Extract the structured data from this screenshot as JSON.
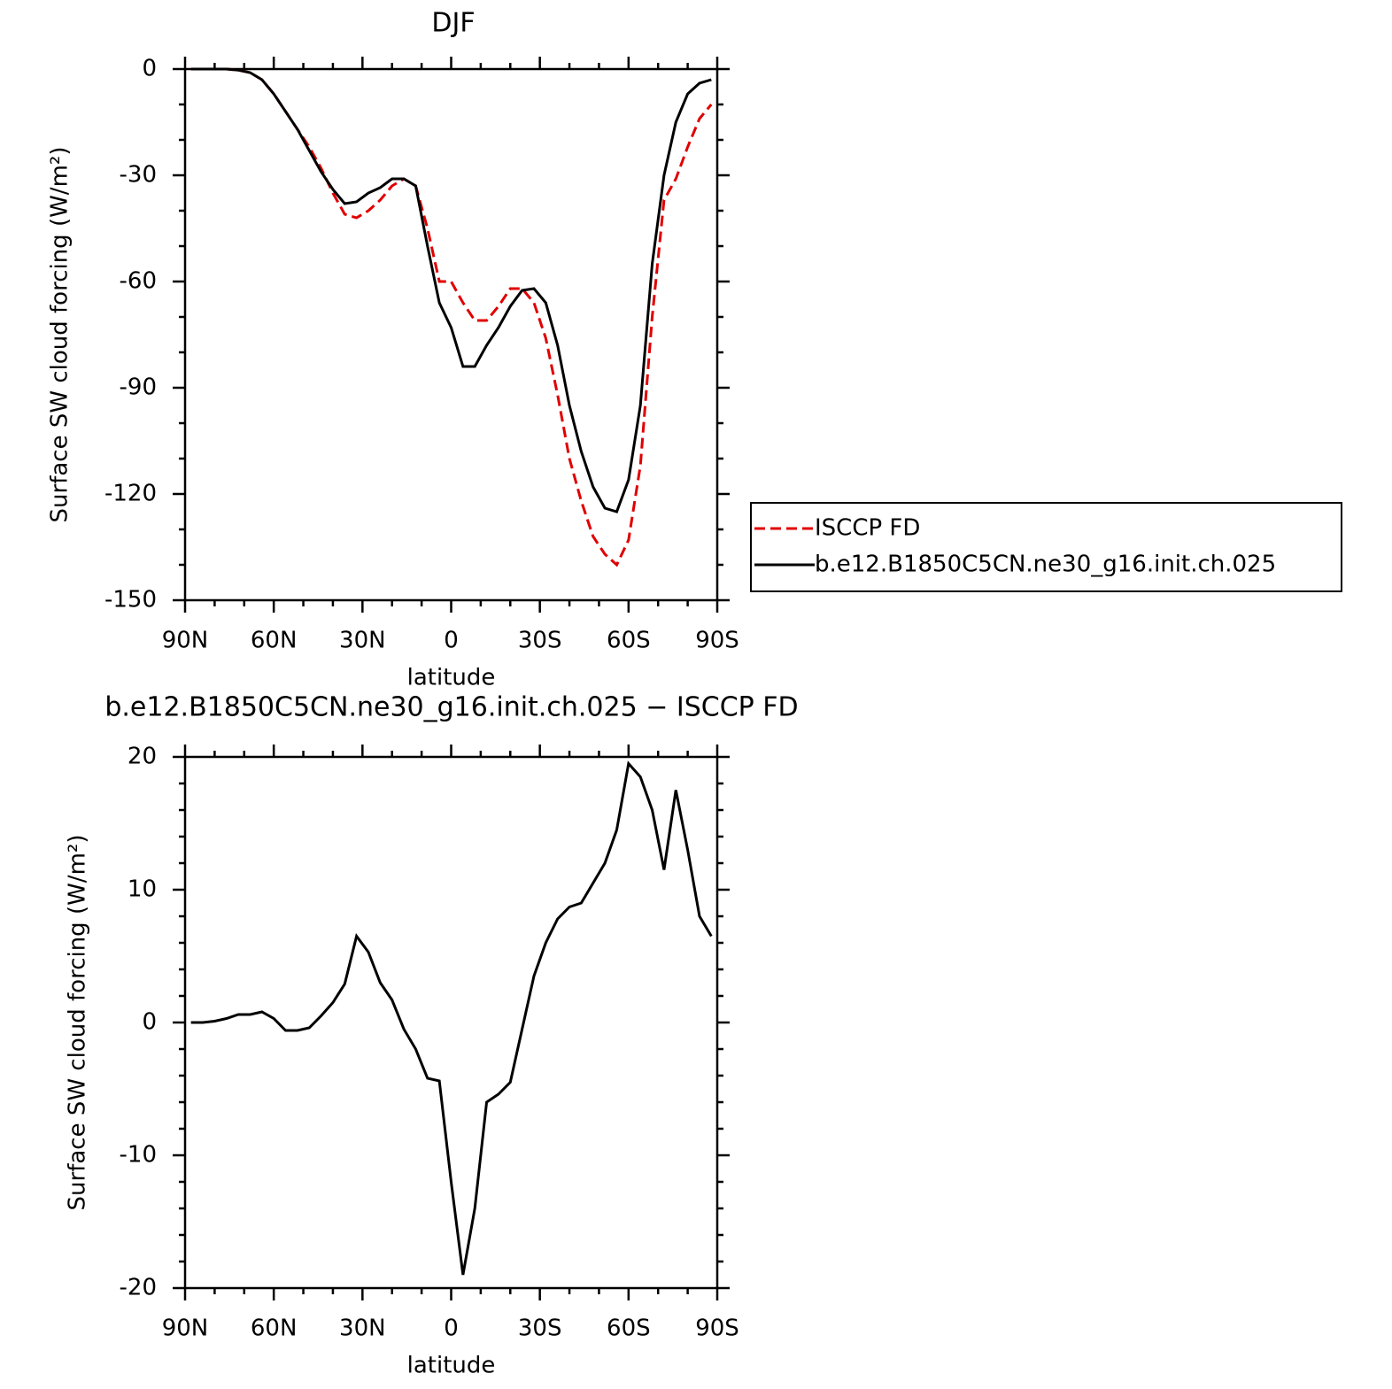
{
  "chart_data": [
    {
      "type": "line",
      "title": "DJF",
      "xlabel": "latitude",
      "ylabel": "Surface SW cloud forcing (W/m²)",
      "x": [
        88,
        84,
        80,
        76,
        72,
        68,
        64,
        60,
        56,
        52,
        48,
        44,
        40,
        36,
        32,
        28,
        24,
        20,
        16,
        12,
        8,
        4,
        0,
        -4,
        -8,
        -12,
        -16,
        -20,
        -24,
        -28,
        -32,
        -36,
        -40,
        -44,
        -48,
        -52,
        -56,
        -60,
        -64,
        -68,
        -72,
        -76,
        -80,
        -84,
        -88
      ],
      "xlim": [
        90,
        -90
      ],
      "xticks": [
        {
          "value": 90,
          "label": "90N"
        },
        {
          "value": 60,
          "label": "60N"
        },
        {
          "value": 30,
          "label": "30N"
        },
        0,
        {
          "value": -30,
          "label": "30S"
        },
        {
          "value": -60,
          "label": "60S"
        },
        {
          "value": -90,
          "label": "90S"
        }
      ],
      "xminorticks": [
        80,
        70,
        50,
        40,
        20,
        10,
        -10,
        -20,
        -40,
        -50,
        -70,
        -80
      ],
      "ylim": [
        -150,
        0
      ],
      "yticks": [
        0,
        -30,
        -60,
        -90,
        -120,
        -150
      ],
      "yminorticks": [
        -10,
        -20,
        -40,
        -50,
        -70,
        -80,
        -100,
        -110,
        -130,
        -140
      ],
      "legend": "right",
      "series": [
        {
          "name": "ISCCP FD",
          "color": "#e00000",
          "linestyle": "dashed",
          "values": [
            0,
            0,
            0,
            0,
            -0.3,
            -1,
            -3,
            -7,
            -12,
            -17,
            -22,
            -28,
            -35,
            -41,
            -42,
            -40,
            -37,
            -33,
            -31,
            -33,
            -45,
            -60,
            -60,
            -66,
            -71,
            -71,
            -67,
            -62,
            -62,
            -66,
            -76,
            -92,
            -110,
            -122,
            -132,
            -137,
            -140,
            -133,
            -112,
            -70,
            -37,
            -31,
            -22,
            -14,
            -10
          ]
        },
        {
          "name": "b.e12.B1850C5CN.ne30_g16.init.ch.025",
          "color": "#000000",
          "linestyle": "solid",
          "values": [
            0,
            0,
            0,
            0,
            -0.3,
            -1,
            -3,
            -7,
            -12,
            -17,
            -23,
            -29,
            -34,
            -38,
            -37.5,
            -35,
            -33.5,
            -31,
            -31,
            -33,
            -50,
            -66,
            -73,
            -84,
            -84,
            -78,
            -73,
            -67,
            -62.5,
            -62,
            -66,
            -78,
            -95,
            -108,
            -118,
            -124,
            -125,
            -116,
            -95,
            -55,
            -30,
            -15,
            -7,
            -4,
            -3
          ]
        }
      ]
    },
    {
      "type": "line",
      "title": "b.e12.B1850C5CN.ne30_g16.init.ch.025 − ISCCP FD",
      "xlabel": "latitude",
      "ylabel": "Surface SW cloud forcing (W/m²)",
      "x": [
        88,
        84,
        80,
        76,
        72,
        68,
        64,
        60,
        56,
        52,
        48,
        44,
        40,
        36,
        32,
        28,
        24,
        20,
        16,
        12,
        8,
        4,
        0,
        -4,
        -8,
        -12,
        -16,
        -20,
        -24,
        -28,
        -32,
        -36,
        -40,
        -44,
        -48,
        -52,
        -56,
        -60,
        -64,
        -68,
        -72,
        -76,
        -80,
        -84,
        -88
      ],
      "xlim": [
        90,
        -90
      ],
      "xticks": [
        {
          "value": 90,
          "label": "90N"
        },
        {
          "value": 60,
          "label": "60N"
        },
        {
          "value": 30,
          "label": "30N"
        },
        0,
        {
          "value": -30,
          "label": "30S"
        },
        {
          "value": -60,
          "label": "60S"
        },
        {
          "value": -90,
          "label": "90S"
        }
      ],
      "xminorticks": [
        80,
        70,
        50,
        40,
        20,
        10,
        -10,
        -20,
        -40,
        -50,
        -70,
        -80
      ],
      "ylim": [
        -20,
        20
      ],
      "yticks": [
        20,
        10,
        0,
        -10,
        -20
      ],
      "yminorticks": [
        18,
        16,
        14,
        12,
        8,
        6,
        4,
        2,
        -2,
        -4,
        -6,
        -8,
        -12,
        -14,
        -16,
        -18
      ],
      "color": "#000000",
      "values": [
        0,
        0,
        0.1,
        0.3,
        0.6,
        0.6,
        0.8,
        0.3,
        -0.6,
        -0.6,
        -0.4,
        0.5,
        1.5,
        2.9,
        6.5,
        5.3,
        3,
        1.7,
        -0.5,
        -2,
        -4.2,
        -4.4,
        -12,
        -19,
        -14,
        -6,
        -5.4,
        -4.5,
        -0.5,
        3.5,
        6,
        7.8,
        8.7,
        9,
        10.5,
        12,
        14.5,
        19.5,
        18.5,
        16,
        11.5,
        17.5,
        13,
        8,
        6.5
      ]
    }
  ]
}
